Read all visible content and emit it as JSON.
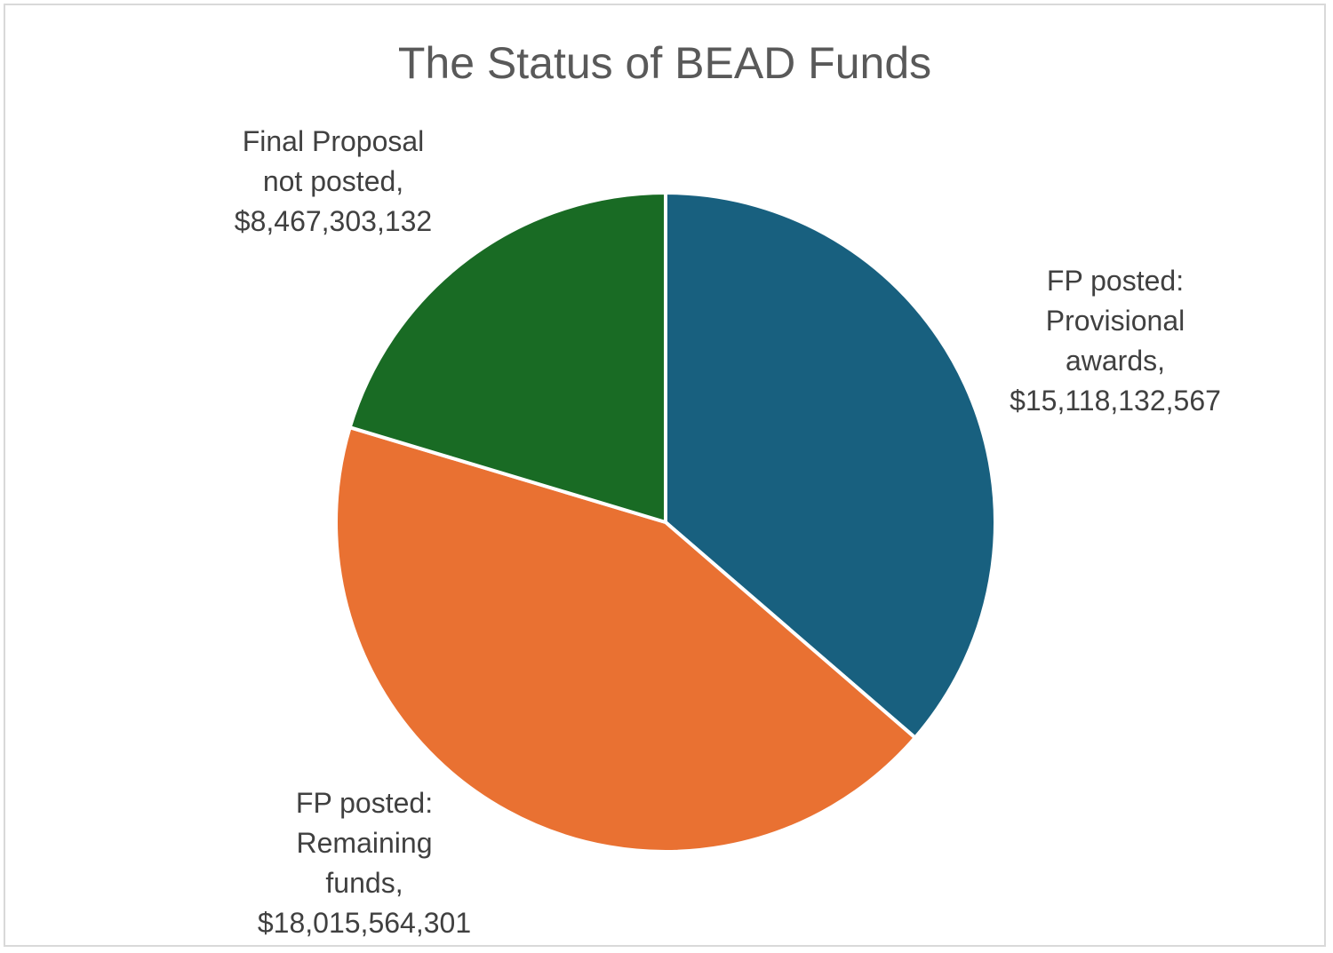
{
  "chart_data": {
    "type": "pie",
    "title": "The Status of BEAD Funds",
    "slices": [
      {
        "name": "FP posted: Provisional awards",
        "value": 15118132567,
        "value_label": "$15,118,132,567",
        "label_lines": [
          "FP posted:",
          "Provisional",
          "awards,",
          "$15,118,132,567"
        ],
        "color": "#18607f"
      },
      {
        "name": "FP posted: Remaining funds",
        "value": 18015564301,
        "value_label": "$18,015,564,301",
        "label_lines": [
          "FP posted:",
          "Remaining",
          "funds,",
          "$18,015,564,301"
        ],
        "color": "#e97132"
      },
      {
        "name": "Final Proposal not posted",
        "value": 8467303132,
        "value_label": "$8,467,303,132",
        "label_lines": [
          "Final Proposal",
          "not posted,",
          "$8,467,303,132"
        ],
        "color": "#196b24"
      }
    ],
    "legend": "none"
  }
}
